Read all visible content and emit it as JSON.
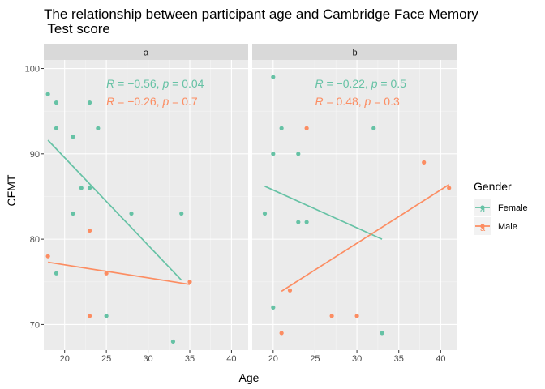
{
  "chart_data": {
    "type": "scatter",
    "title_line1": "The relationship between participant age and Cambridge Face Memory",
    "title_line2": " Test score",
    "xlabel": "Age",
    "ylabel": "CFMT",
    "xlim": [
      17.5,
      42
    ],
    "ylim": [
      67,
      101
    ],
    "x_ticks": [
      20,
      25,
      30,
      35,
      40
    ],
    "y_ticks": [
      70,
      80,
      90,
      100
    ],
    "grid": true,
    "legend": {
      "title": "Gender",
      "position": "right",
      "glyph": "a",
      "entries": [
        {
          "name": "Female",
          "color": "#66c2a5"
        },
        {
          "name": "Male",
          "color": "#fc8d62"
        }
      ]
    },
    "panels": [
      {
        "label": "a",
        "annotations": [
          {
            "text": "R = −0.56, p = 0.04",
            "R": "−0.56",
            "p": "0.04",
            "color": "#66c2a5"
          },
          {
            "text": "R = −0.26, p = 0.7",
            "R": "−0.26",
            "p": "0.7",
            "color": "#fc8d62"
          }
        ],
        "series": [
          {
            "name": "Female",
            "color": "#66c2a5",
            "points": [
              {
                "x": 18,
                "y": 97
              },
              {
                "x": 19,
                "y": 96
              },
              {
                "x": 19,
                "y": 93
              },
              {
                "x": 19,
                "y": 76
              },
              {
                "x": 21,
                "y": 92
              },
              {
                "x": 21,
                "y": 83
              },
              {
                "x": 22,
                "y": 86
              },
              {
                "x": 23,
                "y": 96
              },
              {
                "x": 23,
                "y": 86
              },
              {
                "x": 24,
                "y": 93
              },
              {
                "x": 25,
                "y": 71
              },
              {
                "x": 28,
                "y": 83
              },
              {
                "x": 33,
                "y": 68
              },
              {
                "x": 34,
                "y": 83
              }
            ],
            "fit": {
              "x": [
                18,
                34
              ],
              "y": [
                91.6,
                75.2
              ]
            }
          },
          {
            "name": "Male",
            "color": "#fc8d62",
            "points": [
              {
                "x": 18,
                "y": 78
              },
              {
                "x": 23,
                "y": 81
              },
              {
                "x": 23,
                "y": 71
              },
              {
                "x": 25,
                "y": 76
              },
              {
                "x": 35,
                "y": 75
              }
            ],
            "fit": {
              "x": [
                18,
                35
              ],
              "y": [
                77.3,
                74.7
              ]
            }
          }
        ]
      },
      {
        "label": "b",
        "annotations": [
          {
            "text": "R = −0.22, p = 0.5",
            "R": "−0.22",
            "p": "0.5",
            "color": "#66c2a5"
          },
          {
            "text": "R = 0.48, p = 0.3",
            "R": "0.48",
            "p": "0.3",
            "color": "#fc8d62"
          }
        ],
        "series": [
          {
            "name": "Female",
            "color": "#66c2a5",
            "points": [
              {
                "x": 19,
                "y": 83
              },
              {
                "x": 20,
                "y": 99
              },
              {
                "x": 20,
                "y": 90
              },
              {
                "x": 20,
                "y": 72
              },
              {
                "x": 21,
                "y": 93
              },
              {
                "x": 23,
                "y": 90
              },
              {
                "x": 23,
                "y": 82
              },
              {
                "x": 24,
                "y": 82
              },
              {
                "x": 32,
                "y": 93
              },
              {
                "x": 33,
                "y": 69
              }
            ],
            "fit": {
              "x": [
                19,
                33
              ],
              "y": [
                86.2,
                80.0
              ]
            }
          },
          {
            "name": "Male",
            "color": "#fc8d62",
            "points": [
              {
                "x": 21,
                "y": 69
              },
              {
                "x": 22,
                "y": 74
              },
              {
                "x": 24,
                "y": 93
              },
              {
                "x": 27,
                "y": 71
              },
              {
                "x": 30,
                "y": 71
              },
              {
                "x": 38,
                "y": 89
              },
              {
                "x": 41,
                "y": 86
              }
            ],
            "fit": {
              "x": [
                21,
                41
              ],
              "y": [
                73.9,
                86.4
              ]
            }
          }
        ]
      }
    ]
  }
}
